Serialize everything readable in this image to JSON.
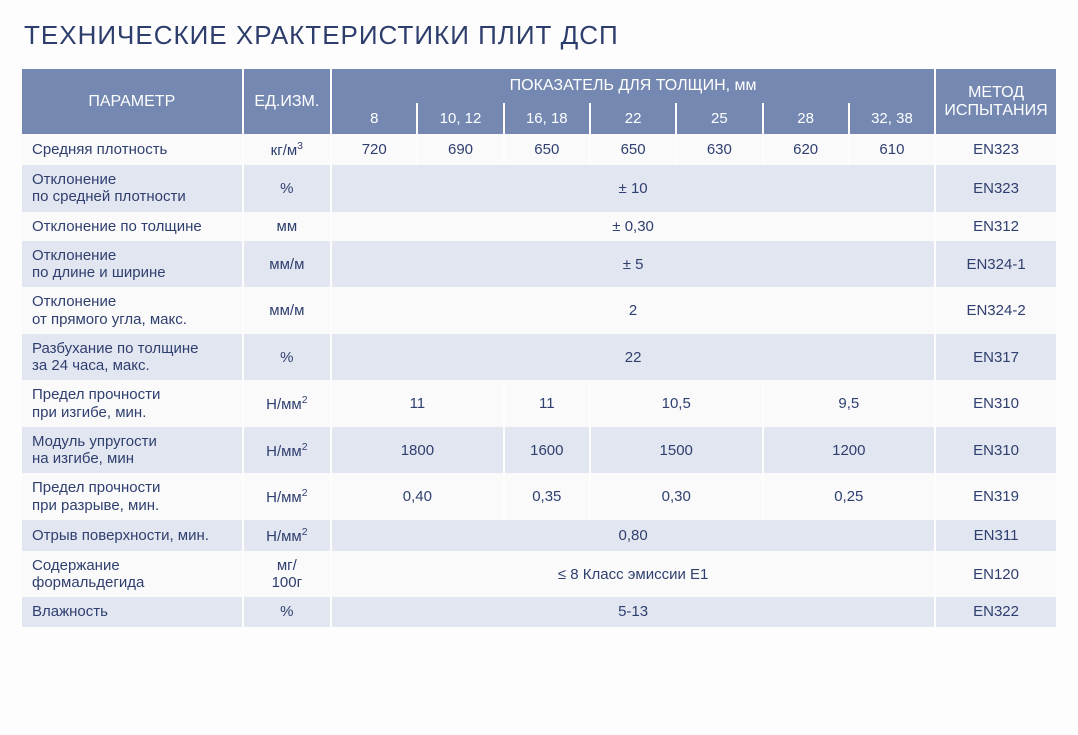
{
  "title": "ТЕХНИЧЕСКИЕ ХРАКТЕРИСТИКИ ПЛИТ ДСП",
  "colors": {
    "header_bg": "#7488b2",
    "header_fg": "#ffffff",
    "row_even_bg": "#e2e6f0",
    "row_odd_bg": "#fafafb",
    "text": "#2f3f6f"
  },
  "header": {
    "param": "ПАРАМЕТР",
    "unit": "ЕД.ИЗМ.",
    "thickness_group": "ПОКАЗАТЕЛЬ ДЛЯ ТОЛЩИН, мм",
    "method": "МЕТОД ИСПЫТАНИЯ",
    "thickness_cols": [
      "8",
      "10, 12",
      "16, 18",
      "22",
      "25",
      "28",
      "32, 38"
    ]
  },
  "rows": [
    {
      "param": "Средняя плотность",
      "unit_html": "кг/м<sup>3</sup>",
      "cells": [
        {
          "text": "720",
          "span": 1
        },
        {
          "text": "690",
          "span": 1
        },
        {
          "text": "650",
          "span": 1
        },
        {
          "text": "650",
          "span": 1
        },
        {
          "text": "630",
          "span": 1
        },
        {
          "text": "620",
          "span": 1
        },
        {
          "text": "610",
          "span": 1
        }
      ],
      "method": "EN323"
    },
    {
      "param": "Отклонение\nпо средней плотности",
      "unit_html": "%",
      "cells": [
        {
          "text": "± 10",
          "span": 7
        }
      ],
      "method": "EN323"
    },
    {
      "param": "Отклонение по толщине",
      "unit_html": "мм",
      "cells": [
        {
          "text": "± 0,30",
          "span": 7
        }
      ],
      "method": "EN312"
    },
    {
      "param": "Отклонение\nпо длине и ширине",
      "unit_html": "мм/м",
      "cells": [
        {
          "text": "± 5",
          "span": 7
        }
      ],
      "method": "EN324-1"
    },
    {
      "param": "Отклонение\nот прямого угла, макс.",
      "unit_html": "мм/м",
      "cells": [
        {
          "text": "2",
          "span": 7
        }
      ],
      "method": "EN324-2"
    },
    {
      "param": "Разбухание по толщине\nза 24 часа, макс.",
      "unit_html": "%",
      "cells": [
        {
          "text": "22",
          "span": 7
        }
      ],
      "method": "EN317"
    },
    {
      "param": "Предел прочности\nпри изгибе, мин.",
      "unit_html": "Н/мм<sup>2</sup>",
      "cells": [
        {
          "text": "11",
          "span": 2
        },
        {
          "text": "11",
          "span": 1
        },
        {
          "text": "10,5",
          "span": 2
        },
        {
          "text": "9,5",
          "span": 2
        }
      ],
      "method": "EN310"
    },
    {
      "param": "Модуль упругости\nна изгибе, мин",
      "unit_html": "Н/мм<sup>2</sup>",
      "cells": [
        {
          "text": "1800",
          "span": 2
        },
        {
          "text": "1600",
          "span": 1
        },
        {
          "text": "1500",
          "span": 2
        },
        {
          "text": "1200",
          "span": 2
        }
      ],
      "method": "EN310"
    },
    {
      "param": "Предел прочности\nпри разрыве, мин.",
      "unit_html": "Н/мм<sup>2</sup>",
      "cells": [
        {
          "text": "0,40",
          "span": 2
        },
        {
          "text": "0,35",
          "span": 1
        },
        {
          "text": "0,30",
          "span": 2
        },
        {
          "text": "0,25",
          "span": 2
        }
      ],
      "method": "EN319"
    },
    {
      "param": "Отрыв поверхности, мин.",
      "unit_html": "Н/мм<sup>2</sup>",
      "cells": [
        {
          "text": "0,80",
          "span": 7
        }
      ],
      "method": "EN311"
    },
    {
      "param": "Содержание\nформальдегида",
      "unit_html": "мг/\n100г",
      "cells": [
        {
          "text": "≤ 8 Класс эмиссии E1",
          "span": 7
        }
      ],
      "method": "EN120"
    },
    {
      "param": "Влажность",
      "unit_html": "%",
      "cells": [
        {
          "text": "5-13",
          "span": 7
        }
      ],
      "method": "EN322"
    }
  ]
}
